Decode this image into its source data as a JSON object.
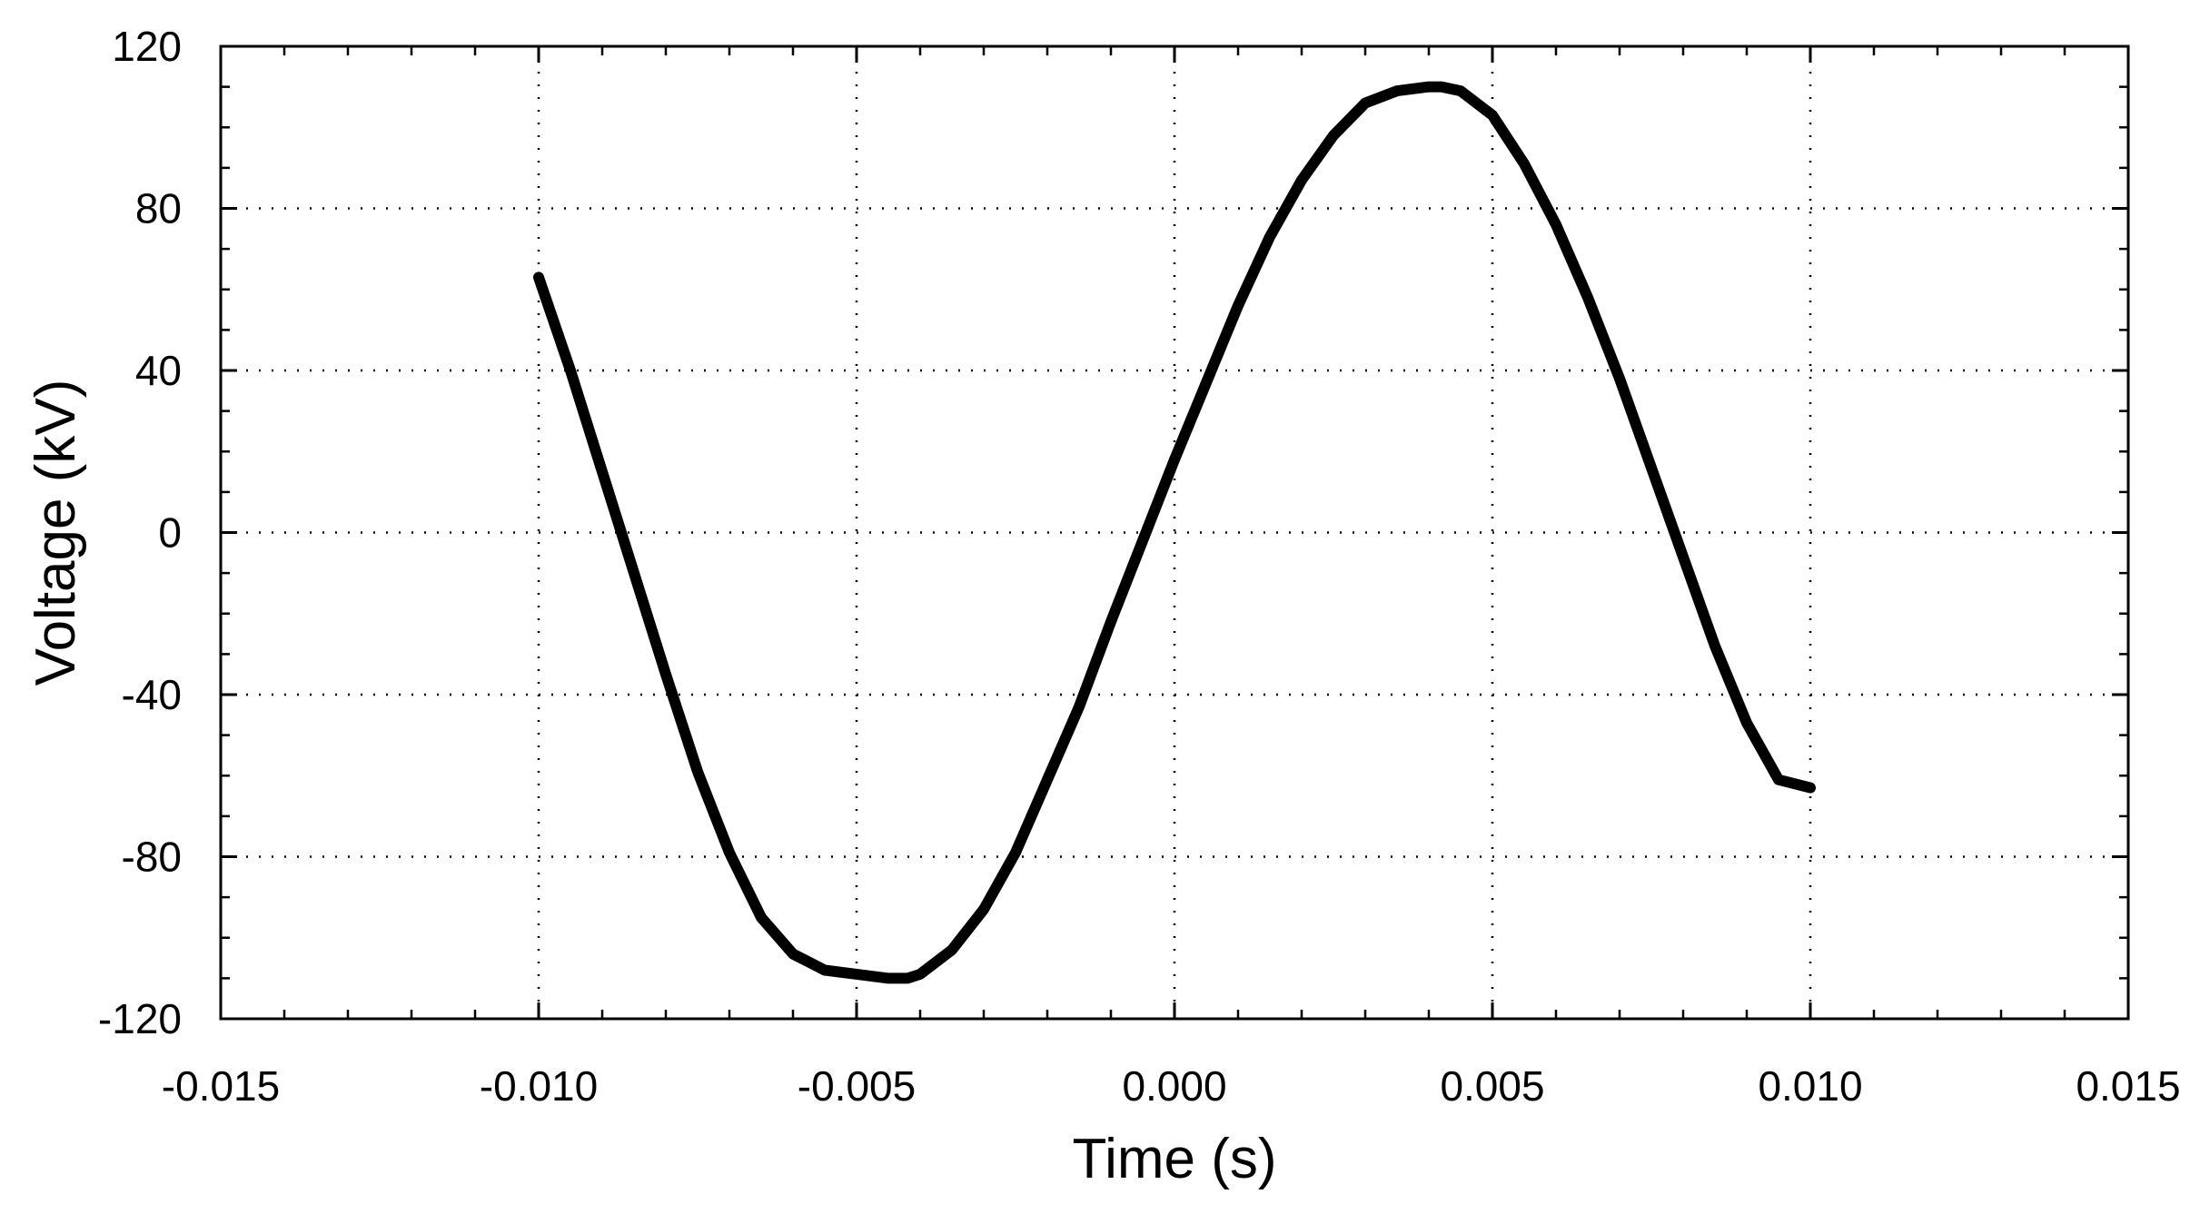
{
  "chart_data": {
    "type": "line",
    "title": "",
    "xlabel": "Time (s)",
    "ylabel": "Voltage (kV)",
    "xlim": [
      -0.015,
      0.015
    ],
    "ylim": [
      -120,
      120
    ],
    "x_ticks": [
      -0.015,
      -0.01,
      -0.005,
      0.0,
      0.005,
      0.01,
      0.015
    ],
    "x_tick_labels": [
      "-0.015",
      "-0.010",
      "-0.005",
      "0.000",
      "0.005",
      "0.010",
      "0.015"
    ],
    "y_ticks": [
      -120,
      -80,
      -40,
      0,
      40,
      80,
      120
    ],
    "y_tick_labels": [
      "-120",
      "-80",
      "-40",
      "0",
      "40",
      "80",
      "120"
    ],
    "grid": true,
    "grid_style": "dotted",
    "legend": "none",
    "line_color": "#000000",
    "series": [
      {
        "x": [
          -0.01,
          -0.0095,
          -0.009,
          -0.0085,
          -0.008,
          -0.0075,
          -0.007,
          -0.0065,
          -0.006,
          -0.0055,
          -0.005,
          -0.0045,
          -0.0042,
          -0.004,
          -0.0035,
          -0.003,
          -0.0025,
          -0.002,
          -0.0015,
          -0.001,
          -0.0005,
          0.0,
          0.0005,
          0.001,
          0.0015,
          0.002,
          0.0025,
          0.003,
          0.0035,
          0.004,
          0.0042,
          0.0045,
          0.005,
          0.0055,
          0.006,
          0.0065,
          0.007,
          0.0075,
          0.008,
          0.0085,
          0.009,
          0.0095,
          0.01
        ],
        "y": [
          63,
          40,
          15,
          -10,
          -35,
          -59,
          -79,
          -95,
          -104,
          -108,
          -109,
          -110,
          -110,
          -109,
          -103,
          -93,
          -79,
          -61,
          -43,
          -22,
          -2,
          18,
          37,
          56,
          73,
          87,
          98,
          106,
          109,
          110,
          110,
          109,
          103,
          91,
          76,
          58,
          38,
          16,
          -6,
          -28,
          -47,
          -61,
          -63
        ]
      }
    ]
  }
}
